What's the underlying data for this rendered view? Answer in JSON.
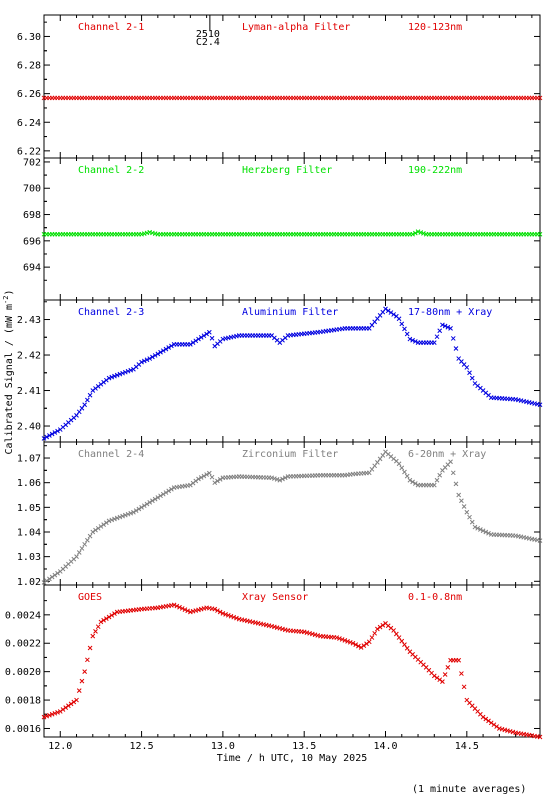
{
  "chart_data": {
    "type": "scatter",
    "xlabel": "Time / h UTC, 10 May 2025",
    "ylabel": "Calibrated Signal / (mW m",
    "ylabel_sup": "-2",
    "ylabel_close": ")",
    "footnote": "(1 minute averages)",
    "xlim": [
      11.9,
      14.95
    ],
    "xticks": [
      12.0,
      12.5,
      13.0,
      13.5,
      14.0,
      14.5
    ],
    "xtick_labels": [
      "12.0",
      "12.5",
      "13.0",
      "13.5",
      "14.0",
      "14.5"
    ],
    "marker_text": [
      "2510",
      "C2.4"
    ],
    "marker_x": 12.92,
    "panels": [
      {
        "name": "Channel 2-1",
        "filter": "Lyman-alpha Filter",
        "band": "120-123nm",
        "color": "#e00000",
        "ylim": [
          6.215,
          6.315
        ],
        "yticks": [
          6.22,
          6.24,
          6.26,
          6.28,
          6.3
        ],
        "ytick_labels": [
          "6.22",
          "6.24",
          "6.26",
          "6.28",
          "6.30"
        ],
        "x": [
          11.9,
          12.5,
          13.0,
          13.5,
          14.0,
          14.5,
          14.95
        ],
        "y": [
          6.257,
          6.257,
          6.257,
          6.257,
          6.257,
          6.257,
          6.257
        ]
      },
      {
        "name": "Channel 2-2",
        "filter": "Herzberg Filter",
        "band": "190-222nm",
        "color": "#00e000",
        "ylim": [
          691.5,
          702.3
        ],
        "yticks": [
          694,
          696,
          698,
          700,
          702
        ],
        "ytick_labels": [
          "694",
          "696",
          "698",
          "700",
          "702"
        ],
        "x": [
          11.9,
          12.5,
          12.55,
          12.6,
          13.0,
          13.5,
          14.0,
          14.17,
          14.2,
          14.25,
          14.5,
          14.95
        ],
        "y": [
          696.5,
          696.5,
          696.65,
          696.5,
          696.5,
          696.5,
          696.5,
          696.5,
          696.7,
          696.5,
          696.5,
          696.5
        ]
      },
      {
        "name": "Channel 2-3",
        "filter": "Aluminium Filter",
        "band": "17-80nm + Xray",
        "color": "#0000e0",
        "ylim": [
          2.3955,
          2.4355
        ],
        "yticks": [
          2.4,
          2.41,
          2.42,
          2.43
        ],
        "ytick_labels": [
          "2.40",
          "2.41",
          "2.42",
          "2.43"
        ],
        "x": [
          11.9,
          12.0,
          12.1,
          12.15,
          12.2,
          12.3,
          12.45,
          12.5,
          12.55,
          12.7,
          12.8,
          12.85,
          12.92,
          12.95,
          13.0,
          13.1,
          13.3,
          13.35,
          13.4,
          13.6,
          13.75,
          13.8,
          13.9,
          14.0,
          14.08,
          14.15,
          14.2,
          14.3,
          14.35,
          14.4,
          14.45,
          14.5,
          14.55,
          14.65,
          14.8,
          14.95
        ],
        "y": [
          2.3965,
          2.399,
          2.403,
          2.406,
          2.41,
          2.4135,
          2.416,
          2.418,
          2.419,
          2.423,
          2.423,
          2.4245,
          2.4265,
          2.4225,
          2.4245,
          2.4255,
          2.4255,
          2.4235,
          2.4255,
          2.4265,
          2.4275,
          2.4275,
          2.4275,
          2.433,
          2.4305,
          2.4245,
          2.4235,
          2.4235,
          2.4285,
          2.4275,
          2.419,
          2.4165,
          2.412,
          2.408,
          2.4075,
          2.406
        ]
      },
      {
        "name": "Channel 2-4",
        "filter": "Zirconium Filter",
        "band": "6-20nm + Xray",
        "color": "#808080",
        "ylim": [
          1.0185,
          1.0765
        ],
        "yticks": [
          1.02,
          1.03,
          1.04,
          1.05,
          1.06,
          1.07
        ],
        "ytick_labels": [
          "1.02",
          "1.03",
          "1.04",
          "1.05",
          "1.06",
          "1.07"
        ],
        "x": [
          11.9,
          12.0,
          12.1,
          12.15,
          12.2,
          12.3,
          12.45,
          12.5,
          12.55,
          12.7,
          12.8,
          12.85,
          12.92,
          12.95,
          13.0,
          13.1,
          13.3,
          13.35,
          13.4,
          13.6,
          13.75,
          13.8,
          13.9,
          14.0,
          14.08,
          14.15,
          14.2,
          14.3,
          14.35,
          14.4,
          14.45,
          14.5,
          14.55,
          14.65,
          14.8,
          14.95
        ],
        "y": [
          1.0195,
          1.024,
          1.03,
          1.035,
          1.04,
          1.0445,
          1.048,
          1.05,
          1.052,
          1.058,
          1.059,
          1.0615,
          1.064,
          1.06,
          1.062,
          1.0625,
          1.062,
          1.061,
          1.0625,
          1.063,
          1.063,
          1.0635,
          1.064,
          1.0725,
          1.068,
          1.061,
          1.059,
          1.059,
          1.065,
          1.0685,
          1.055,
          1.048,
          1.042,
          1.039,
          1.0385,
          1.0365
        ]
      },
      {
        "name": "GOES",
        "filter": "Xray Sensor",
        "band": "0.1-0.8nm",
        "color": "#e00000",
        "ylim": [
          0.00154,
          0.00261
        ],
        "yticks": [
          0.0016,
          0.0018,
          0.002,
          0.0022,
          0.0024
        ],
        "ytick_labels": [
          "0.0016",
          "0.0018",
          "0.0020",
          "0.0022",
          "0.0024"
        ],
        "x": [
          11.9,
          12.0,
          12.1,
          12.15,
          12.2,
          12.25,
          12.35,
          12.5,
          12.6,
          12.7,
          12.8,
          12.9,
          12.95,
          13.0,
          13.1,
          13.3,
          13.4,
          13.5,
          13.6,
          13.7,
          13.8,
          13.85,
          13.9,
          13.95,
          14.0,
          14.05,
          14.15,
          14.25,
          14.3,
          14.35,
          14.4,
          14.45,
          14.5,
          14.6,
          14.7,
          14.8,
          14.95
        ],
        "y": [
          0.00168,
          0.00172,
          0.0018,
          0.002,
          0.00225,
          0.00235,
          0.00242,
          0.00244,
          0.00245,
          0.00247,
          0.00242,
          0.00245,
          0.00244,
          0.00241,
          0.00237,
          0.00232,
          0.00229,
          0.00228,
          0.00225,
          0.00224,
          0.0022,
          0.00217,
          0.00221,
          0.0023,
          0.00234,
          0.00229,
          0.00214,
          0.00203,
          0.00197,
          0.00193,
          0.00208,
          0.00208,
          0.0018,
          0.00168,
          0.0016,
          0.00157,
          0.00154
        ]
      }
    ]
  }
}
